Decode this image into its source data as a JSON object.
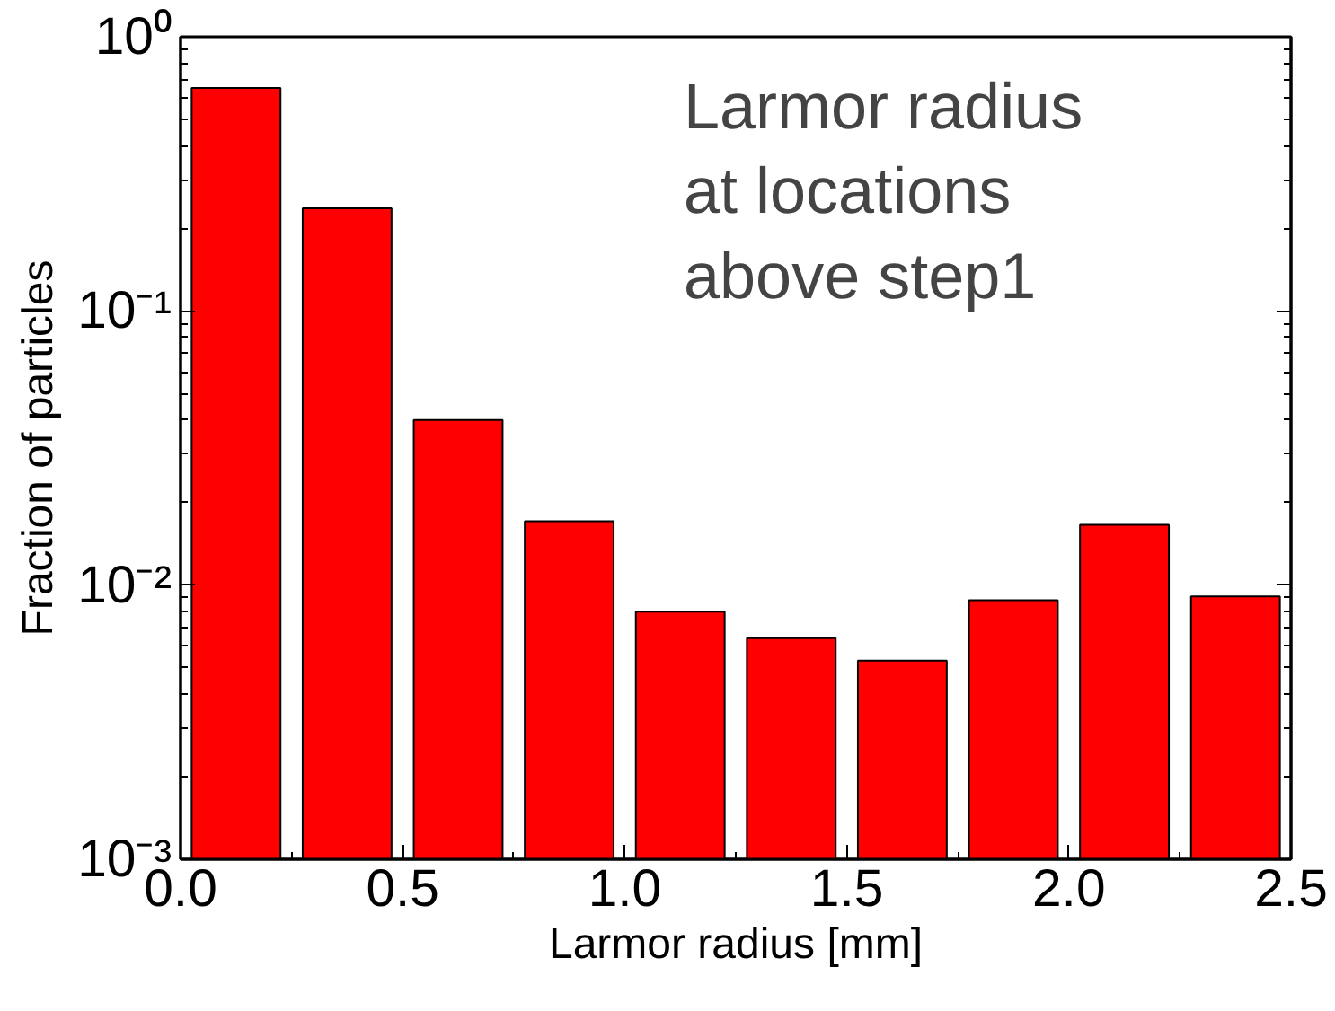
{
  "chart_data": {
    "type": "histogram",
    "xlabel": "Larmor radius [mm]",
    "ylabel": "Fraction of particles",
    "annotations": [
      "Larmor radius\nat locations\nabove step1"
    ],
    "bins": [
      0,
      0.25,
      0.5,
      0.75,
      1.0,
      1.25,
      1.5,
      1.75,
      2.0,
      2.25,
      2.5
    ],
    "values": [
      0.65,
      0.237,
      0.04,
      0.0171,
      0.008,
      0.0064,
      0.0053,
      0.0088,
      0.0166,
      0.0091
    ],
    "color": "#ff0000",
    "log": "y",
    "xlim": [
      0,
      2.5
    ],
    "xticks": [
      {
        "value": 0,
        "label": "0.0"
      },
      0.5,
      {
        "value": 1,
        "label": "1.0"
      },
      1.5,
      {
        "value": 2,
        "label": "2.0"
      },
      2.5
    ],
    "ylim": [
      0.001,
      1
    ],
    "yticks": [
      {
        "value": 0.001,
        "label": "10⁻³"
      },
      {
        "value": 0.01,
        "label": "10⁻²"
      },
      {
        "value": 0.1,
        "label": "10⁻¹"
      },
      {
        "value": 1,
        "label": "10⁰"
      }
    ],
    "grid": false
  }
}
